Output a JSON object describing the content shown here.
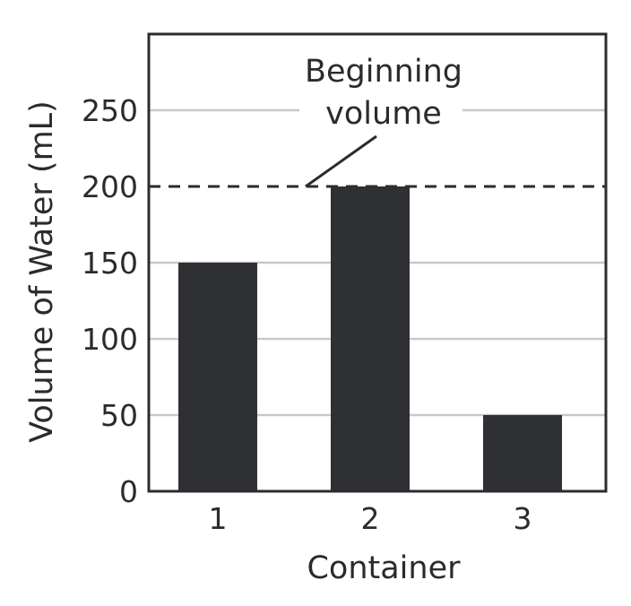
{
  "chart_data": {
    "type": "bar",
    "categories": [
      "1",
      "2",
      "3"
    ],
    "values": [
      150,
      200,
      50
    ],
    "xlabel": "Container",
    "ylabel": "Volume of Water (mL)",
    "ylim": [
      0,
      300
    ],
    "yticks": [
      0,
      50,
      100,
      150,
      200,
      250
    ],
    "grid": true,
    "bar_color": "#2f3034",
    "reference_line": {
      "value": 200,
      "style": "dashed",
      "label_lines": [
        "Beginning",
        "volume"
      ]
    }
  }
}
